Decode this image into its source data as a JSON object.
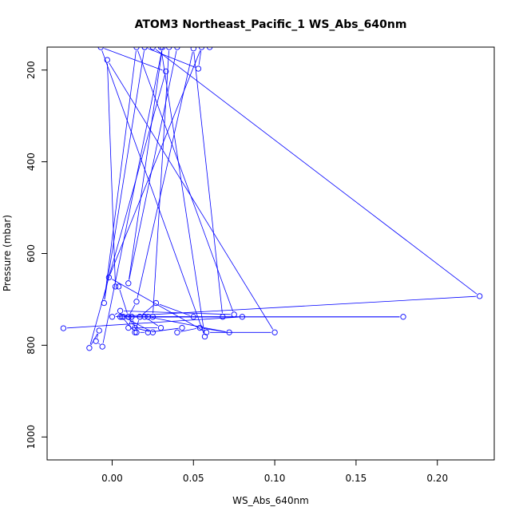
{
  "chart_data": {
    "type": "scatter",
    "title": "ATOM3 Northeast_Pacific_1 WS_Abs_640nm",
    "xlabel": "WS_Abs_640nm",
    "ylabel": "Pressure (mbar)",
    "xlim": [
      -0.04,
      0.235
    ],
    "ylim": [
      1050,
      150
    ],
    "y_reversed": true,
    "x_ticks": [
      "0.00",
      "0.05",
      "0.10",
      "0.15",
      "0.20"
    ],
    "x_tick_values": [
      0,
      0.05,
      0.1,
      0.15,
      0.2
    ],
    "y_ticks": [
      "200",
      "400",
      "600",
      "800",
      "1000"
    ],
    "y_tick_values": [
      200,
      400,
      600,
      800,
      1000
    ],
    "grid": false,
    "legend": "none",
    "point_style": "open-circle",
    "color": "#0000ff",
    "series": [
      {
        "x": [
          -0.03,
          0.08,
          0.01,
          0.015,
          0.05,
          0.068,
          0.012,
          0.05,
          0.027,
          0.017,
          0.179,
          0.005,
          0.025,
          0.035,
          0.025,
          0.226,
          0.0,
          0.005,
          0.075,
          0.015,
          -0.005,
          0.02,
          0.04,
          0.01,
          0.031,
          -0.006,
          -0.01,
          -0.008,
          -0.014,
          0.033,
          -0.007,
          0.057,
          0.03,
          0.06,
          0.02,
          0.053,
          0.055,
          -0.002,
          0.058,
          0.1,
          -0.003,
          0.002,
          0.004,
          0.01,
          0.014,
          0.025,
          0.007,
          0.02,
          0.03,
          0.01,
          0.012,
          0.015,
          0.022,
          0.043,
          0.04,
          0.054,
          0.072,
          0.022,
          0.017,
          0.014,
          0.006
        ],
        "y": [
          763,
          738,
          738,
          705,
          153,
          738,
          738,
          738,
          708,
          738,
          738,
          738,
          738,
          150,
          150,
          693,
          738,
          725,
          733,
          150,
          708,
          150,
          150,
          665,
          150,
          803,
          791,
          768,
          806,
          203,
          150,
          781,
          150,
          150,
          150,
          197,
          150,
          652,
          772,
          772,
          178,
          672,
          672,
          738,
          762,
          772,
          738,
          738,
          762,
          762,
          738,
          772,
          772,
          762,
          772,
          762,
          772,
          738,
          738,
          772,
          738
        ]
      }
    ]
  }
}
